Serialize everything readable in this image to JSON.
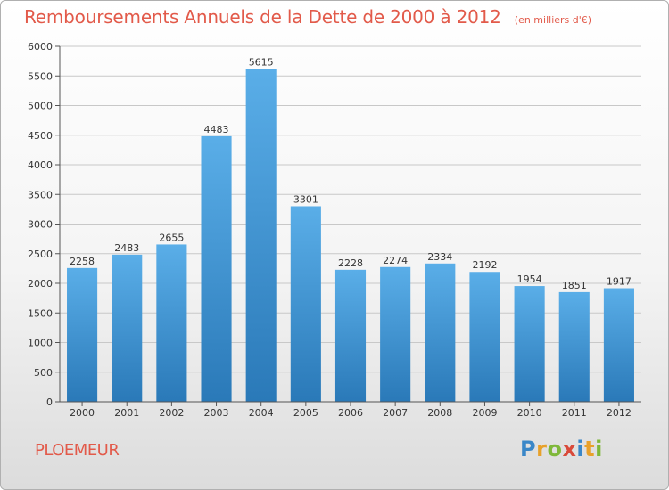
{
  "header": {
    "title": "Remboursements Annuels de la Dette de 2000 à 2012",
    "subtitle": "(en milliers d'€)"
  },
  "footer": {
    "commune": "PLOEMEUR",
    "logo": {
      "text": "Proxiti",
      "letters": [
        {
          "char": "P",
          "color": "#3a87c8"
        },
        {
          "char": "r",
          "color": "#e8a12a"
        },
        {
          "char": "o",
          "color": "#7fb83a"
        },
        {
          "char": "x",
          "color": "#d94a3a"
        },
        {
          "char": "i",
          "color": "#3a87c8"
        },
        {
          "char": "t",
          "color": "#e8a12a"
        },
        {
          "char": "i",
          "color": "#7fb83a"
        }
      ]
    }
  },
  "colors": {
    "title": "#e25a4a",
    "bar_top": "#5aaee8",
    "bar_bottom": "#2a79b8",
    "grid": "#c8c8c8"
  },
  "chart_data": {
    "type": "bar",
    "categories": [
      "2000",
      "2001",
      "2002",
      "2003",
      "2004",
      "2005",
      "2006",
      "2007",
      "2008",
      "2009",
      "2010",
      "2011",
      "2012"
    ],
    "values": [
      2258,
      2483,
      2655,
      4483,
      5615,
      3301,
      2228,
      2274,
      2334,
      2192,
      1954,
      1851,
      1917
    ],
    "title": "Remboursements Annuels de la Dette de 2000 à 2012",
    "xlabel": "",
    "ylabel": "",
    "ylim": [
      0,
      6000
    ],
    "yticks": [
      0,
      500,
      1000,
      1500,
      2000,
      2500,
      3000,
      3500,
      4000,
      4500,
      5000,
      5500,
      6000
    ],
    "grid": true,
    "data_labels": true
  }
}
